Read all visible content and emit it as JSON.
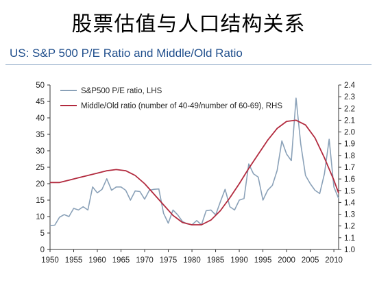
{
  "page": {
    "title": "股票估值与人口结构关系"
  },
  "chart_data": {
    "type": "line",
    "title": "US: S&P 500 P/E Ratio and Middle/Old Ratio",
    "xlim": [
      1950,
      2011
    ],
    "ylim_left": [
      0,
      50
    ],
    "ylim_right": [
      1.0,
      2.4
    ],
    "x_ticks": [
      "1950",
      "1955",
      "1960",
      "1965",
      "1970",
      "1975",
      "1980",
      "1985",
      "1990",
      "1995",
      "2000",
      "2005",
      "2010"
    ],
    "y_ticks_left": [
      "0",
      "5",
      "10",
      "15",
      "20",
      "25",
      "30",
      "35",
      "40",
      "45",
      "50"
    ],
    "y_ticks_right": [
      "1.0",
      "1.1",
      "1.2",
      "1.3",
      "1.4",
      "1.5",
      "1.6",
      "1.7",
      "1.8",
      "1.9",
      "2.0",
      "2.1",
      "2.2",
      "2.3",
      "2.4"
    ],
    "legend_position": "top-left",
    "series": [
      {
        "name": "S&P500 P/E ratio, LHS",
        "axis": "left",
        "color": "#8aa1b8",
        "x": [
          1950,
          1951,
          1952,
          1953,
          1954,
          1955,
          1956,
          1957,
          1958,
          1959,
          1960,
          1961,
          1962,
          1963,
          1964,
          1965,
          1966,
          1967,
          1968,
          1969,
          1970,
          1971,
          1972,
          1973,
          1974,
          1975,
          1976,
          1977,
          1978,
          1979,
          1980,
          1981,
          1982,
          1983,
          1984,
          1985,
          1986,
          1987,
          1988,
          1989,
          1990,
          1991,
          1992,
          1993,
          1994,
          1995,
          1996,
          1997,
          1998,
          1999,
          2000,
          2001,
          2002,
          2003,
          2004,
          2005,
          2006,
          2007,
          2008,
          2009,
          2010,
          2011
        ],
        "values": [
          7.2,
          7.4,
          9.8,
          10.6,
          10.0,
          12.5,
          12.0,
          13.0,
          12.0,
          19.0,
          17.2,
          18.3,
          21.5,
          18.0,
          19.0,
          19.0,
          18.0,
          15.0,
          17.8,
          17.6,
          15.3,
          18.0,
          18.3,
          18.4,
          11.0,
          8.0,
          12.0,
          10.5,
          8.5,
          7.8,
          7.5,
          8.8,
          7.5,
          11.8,
          12.0,
          10.5,
          14.5,
          18.3,
          13.0,
          12.0,
          15.0,
          15.5,
          26.0,
          23.0,
          22.0,
          15.0,
          18.0,
          19.5,
          24.0,
          33.0,
          29.0,
          27.0,
          46.0,
          32.0,
          22.5,
          20.0,
          18.0,
          17.0,
          23.0,
          33.5,
          19.0,
          15.5
        ]
      },
      {
        "name": "Middle/Old ratio (number of 40-49/number of 60-69), RHS",
        "axis": "right",
        "color": "#b22a3e",
        "x": [
          1950,
          1952,
          1954,
          1956,
          1958,
          1960,
          1962,
          1964,
          1966,
          1968,
          1970,
          1972,
          1974,
          1976,
          1978,
          1980,
          1982,
          1984,
          1986,
          1988,
          1990,
          1992,
          1994,
          1996,
          1998,
          2000,
          2002,
          2004,
          2006,
          2008,
          2010,
          2011
        ],
        "values": [
          1.57,
          1.57,
          1.59,
          1.61,
          1.63,
          1.65,
          1.67,
          1.68,
          1.67,
          1.63,
          1.56,
          1.47,
          1.38,
          1.29,
          1.23,
          1.21,
          1.21,
          1.25,
          1.33,
          1.44,
          1.56,
          1.69,
          1.81,
          1.93,
          2.03,
          2.09,
          2.1,
          2.06,
          1.95,
          1.78,
          1.59,
          1.48
        ]
      }
    ]
  }
}
